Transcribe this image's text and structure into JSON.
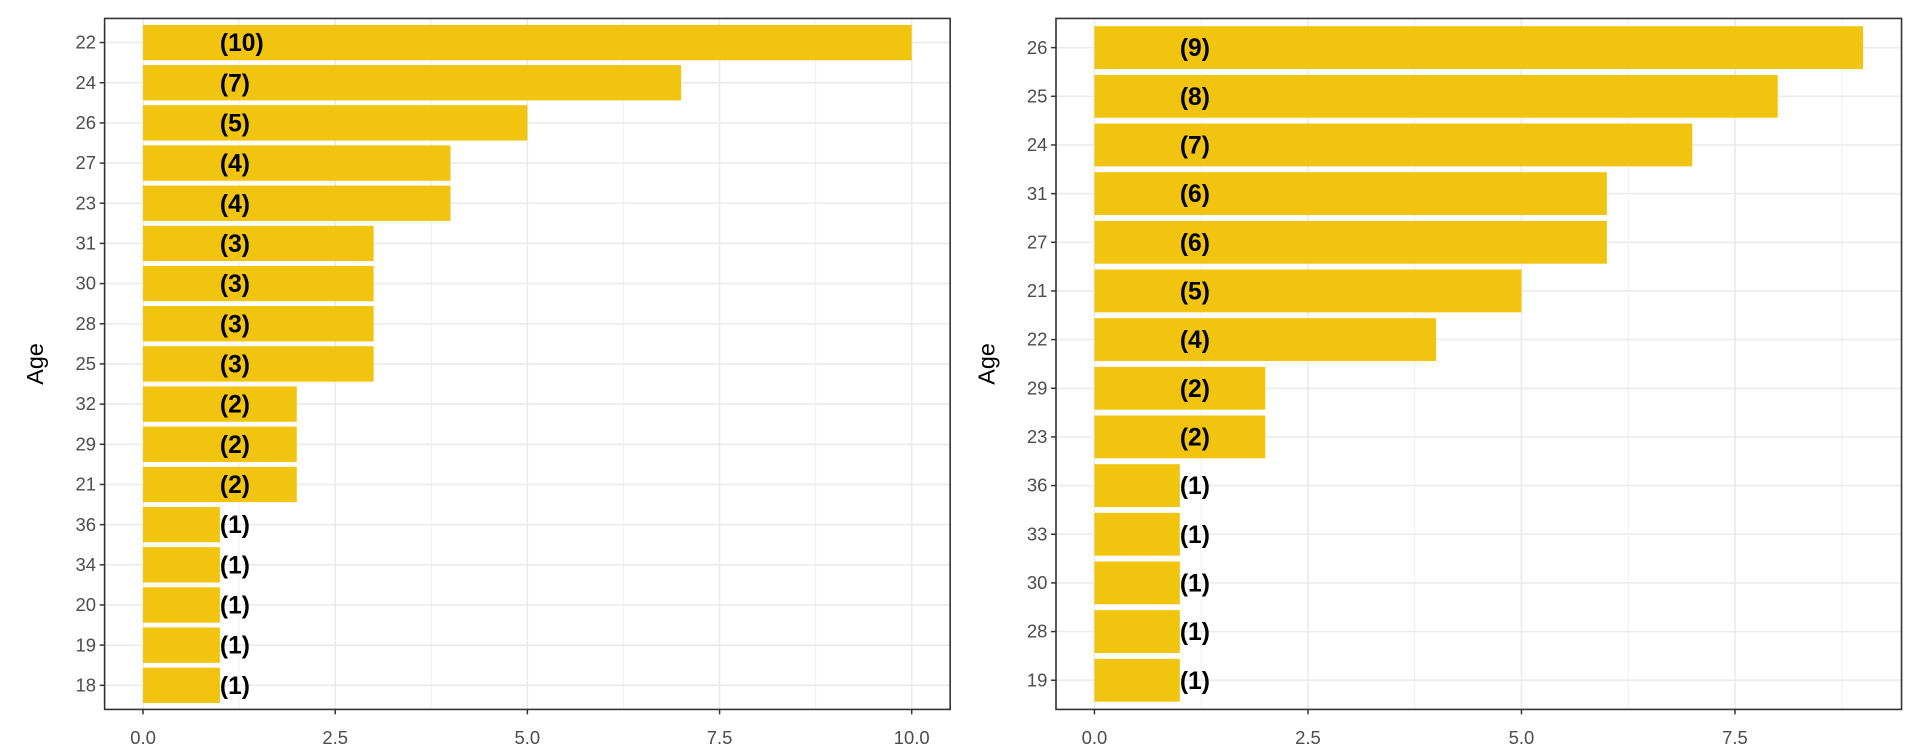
{
  "chart_data": [
    {
      "type": "bar",
      "orientation": "horizontal",
      "title": "",
      "xlabel": "",
      "ylabel": "Age",
      "categories": [
        "22",
        "24",
        "26",
        "27",
        "23",
        "31",
        "30",
        "28",
        "25",
        "32",
        "29",
        "21",
        "36",
        "34",
        "20",
        "19",
        "18"
      ],
      "values": [
        10,
        7,
        5,
        4,
        4,
        3,
        3,
        3,
        3,
        2,
        2,
        2,
        1,
        1,
        1,
        1,
        1
      ],
      "data_labels": [
        "(10)",
        "(7)",
        "(5)",
        "(4)",
        "(4)",
        "(3)",
        "(3)",
        "(3)",
        "(3)",
        "(2)",
        "(2)",
        "(2)",
        "(1)",
        "(1)",
        "(1)",
        "(1)",
        "(1)"
      ],
      "xlim": [
        -0.5,
        10.5
      ],
      "xticks": [
        0,
        2.5,
        5,
        7.5,
        10
      ],
      "xtick_labels": [
        "0.0",
        "2.5",
        "5.0",
        "7.5",
        "10.0"
      ],
      "grid": true,
      "bar_color": "#F1C40F"
    },
    {
      "type": "bar",
      "orientation": "horizontal",
      "title": "",
      "xlabel": "",
      "ylabel": "Age",
      "categories": [
        "26",
        "25",
        "24",
        "31",
        "27",
        "21",
        "22",
        "29",
        "23",
        "36",
        "33",
        "30",
        "28",
        "19"
      ],
      "values": [
        9,
        8,
        7,
        6,
        6,
        5,
        4,
        2,
        2,
        1,
        1,
        1,
        1,
        1
      ],
      "data_labels": [
        "(9)",
        "(8)",
        "(7)",
        "(6)",
        "(6)",
        "(5)",
        "(4)",
        "(2)",
        "(2)",
        "(1)",
        "(1)",
        "(1)",
        "(1)",
        "(1)"
      ],
      "xlim": [
        -0.45,
        9.45
      ],
      "xticks": [
        0,
        2.5,
        5,
        7.5
      ],
      "xtick_labels": [
        "0.0",
        "2.5",
        "5.0",
        "7.5"
      ],
      "grid": true,
      "bar_color": "#F1C40F"
    }
  ]
}
